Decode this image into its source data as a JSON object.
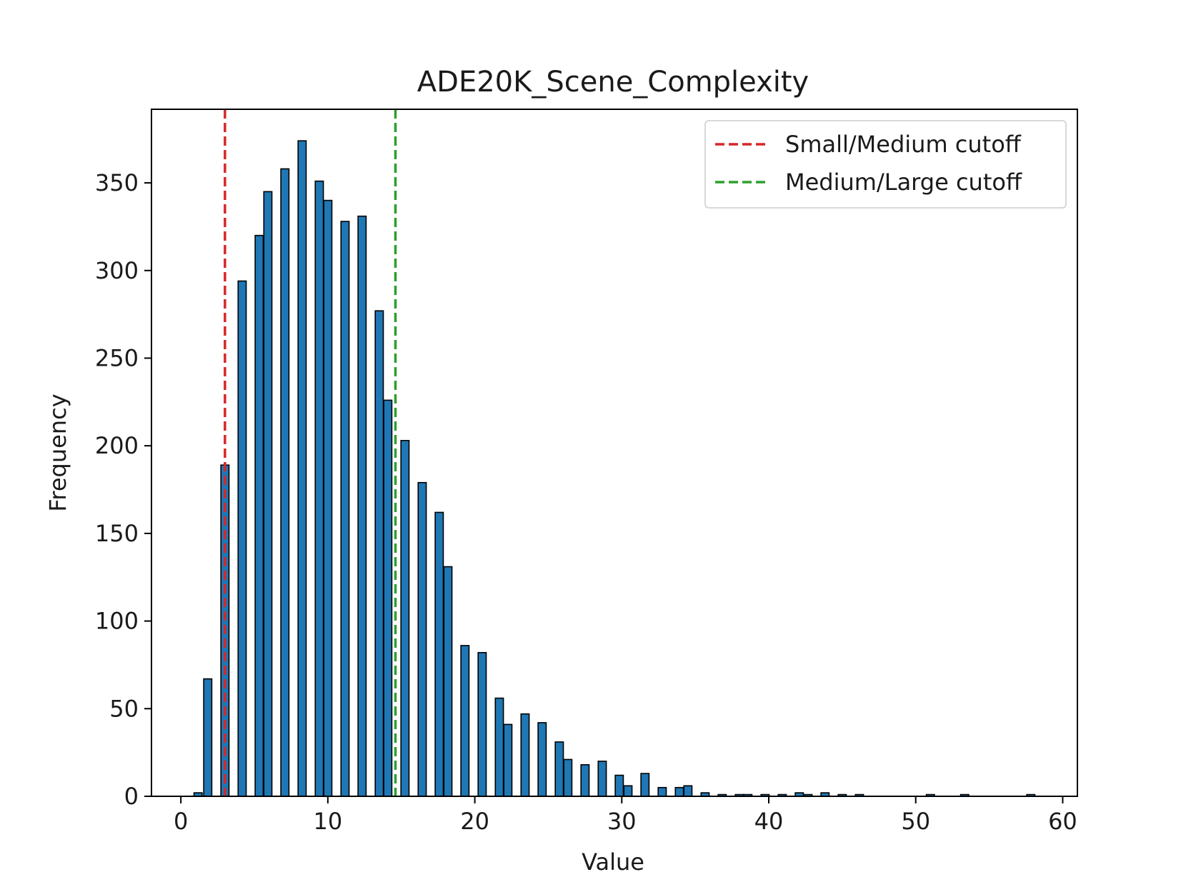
{
  "chart_data": {
    "type": "bar",
    "title": "ADE20K_Scene_Complexity",
    "xlabel": "Value",
    "ylabel": "Frequency",
    "xlim": [
      -2,
      61
    ],
    "ylim": [
      0,
      392
    ],
    "xticks": [
      0,
      10,
      20,
      30,
      40,
      50,
      60
    ],
    "yticks": [
      0,
      50,
      100,
      150,
      200,
      250,
      300,
      350
    ],
    "grid": false,
    "bar_color": "#1f77b4",
    "bar_edge_color": "#000000",
    "series": [
      {
        "x": [
          1.17,
          1.83,
          3.0,
          4.17,
          5.33,
          5.92,
          7.08,
          8.25,
          9.42,
          10.0,
          11.17,
          12.33,
          13.5,
          14.08,
          15.25,
          16.42,
          17.58,
          18.17,
          19.33,
          20.5,
          21.67,
          22.25,
          23.42,
          24.58,
          25.75,
          26.33,
          27.5,
          28.67,
          29.83,
          30.42,
          31.58,
          32.75,
          33.92,
          34.5,
          35.67,
          36.83,
          38.0,
          38.58,
          39.75,
          40.92,
          42.08,
          42.67,
          43.83,
          45.0,
          46.17,
          51.0,
          53.33,
          57.83
        ],
        "values": [
          2,
          67,
          189,
          294,
          320,
          345,
          358,
          374,
          351,
          340,
          328,
          331,
          277,
          226,
          203,
          179,
          162,
          131,
          86,
          82,
          56,
          41,
          47,
          42,
          31,
          21,
          18,
          20,
          12,
          6,
          13,
          5,
          5,
          6,
          2,
          1,
          1,
          1,
          1,
          1,
          2,
          1,
          2,
          1,
          1,
          1,
          1,
          1
        ]
      }
    ],
    "bar_width": 0.55,
    "cutoffs": [
      {
        "name": "Small/Medium cutoff",
        "x": 3.0,
        "color": "#d62728"
      },
      {
        "name": "Medium/Large cutoff",
        "x": 14.6,
        "color": "#2ca02c"
      }
    ],
    "legend": {
      "placement": "top-right",
      "entries": [
        "Small/Medium cutoff",
        "Medium/Large cutoff"
      ]
    }
  }
}
